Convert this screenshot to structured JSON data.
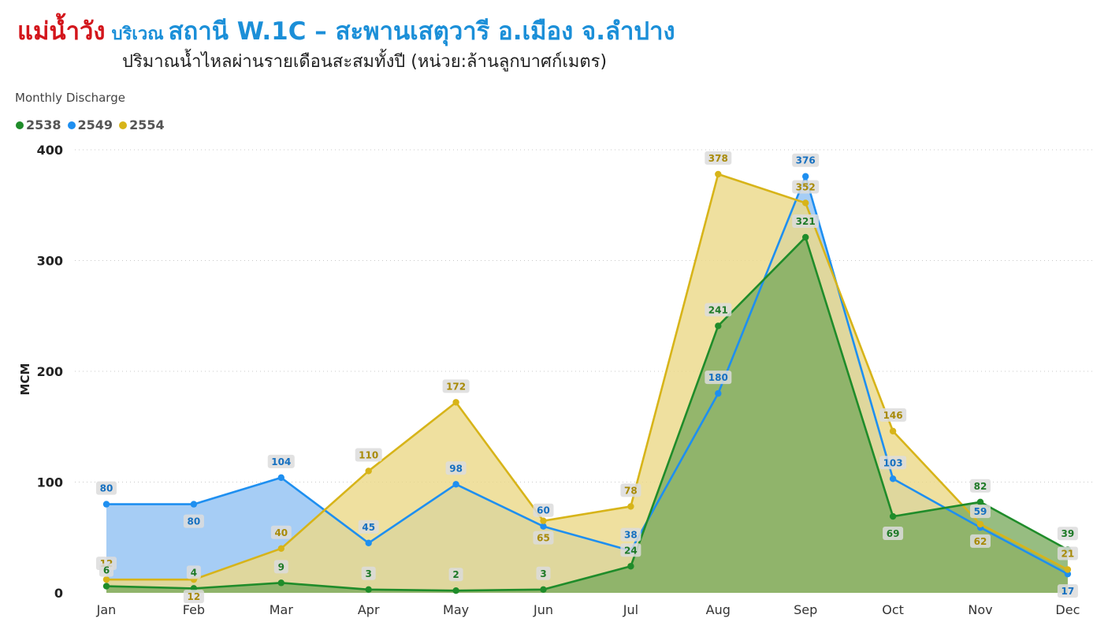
{
  "header": {
    "river": "แม่น้ำวัง",
    "area": "บริเวณ",
    "station": "สถานี W.1C – สะพานเสตุวารี อ.เมือง จ.ลำปาง",
    "subtitle": "ปริมาณน้ำไหลผ่านรายเดือนสะสมทั้งปี (หน่วย:ล้านลูกบาศก์เมตร)"
  },
  "chart_data": {
    "type": "area",
    "title": "Monthly Discharge",
    "ylabel": "MCM",
    "xlabel": "",
    "ylim": [
      0,
      400
    ],
    "yticks": [
      0,
      100,
      200,
      300,
      400
    ],
    "grid": true,
    "legend_position": "top-left",
    "categories": [
      "Jan",
      "Feb",
      "Mar",
      "Apr",
      "May",
      "Jun",
      "Jul",
      "Aug",
      "Sep",
      "Oct",
      "Nov",
      "Dec"
    ],
    "series": [
      {
        "name": "2549",
        "color": "#1e8ff0",
        "fill": "#a6cdf5",
        "values": [
          80,
          80,
          104,
          45,
          98,
          60,
          38,
          180,
          376,
          103,
          59,
          17
        ]
      },
      {
        "name": "2554",
        "color": "#d7b419",
        "fill": "#ecd98a",
        "values": [
          12,
          12,
          40,
          110,
          172,
          65,
          78,
          378,
          352,
          146,
          62,
          21
        ]
      },
      {
        "name": "2538",
        "color": "#1f8c2a",
        "fill": "#7aab5e",
        "values": [
          6,
          4,
          9,
          3,
          2,
          3,
          24,
          241,
          321,
          69,
          82,
          39
        ]
      }
    ],
    "legend_order": [
      "2538",
      "2549",
      "2554"
    ]
  }
}
